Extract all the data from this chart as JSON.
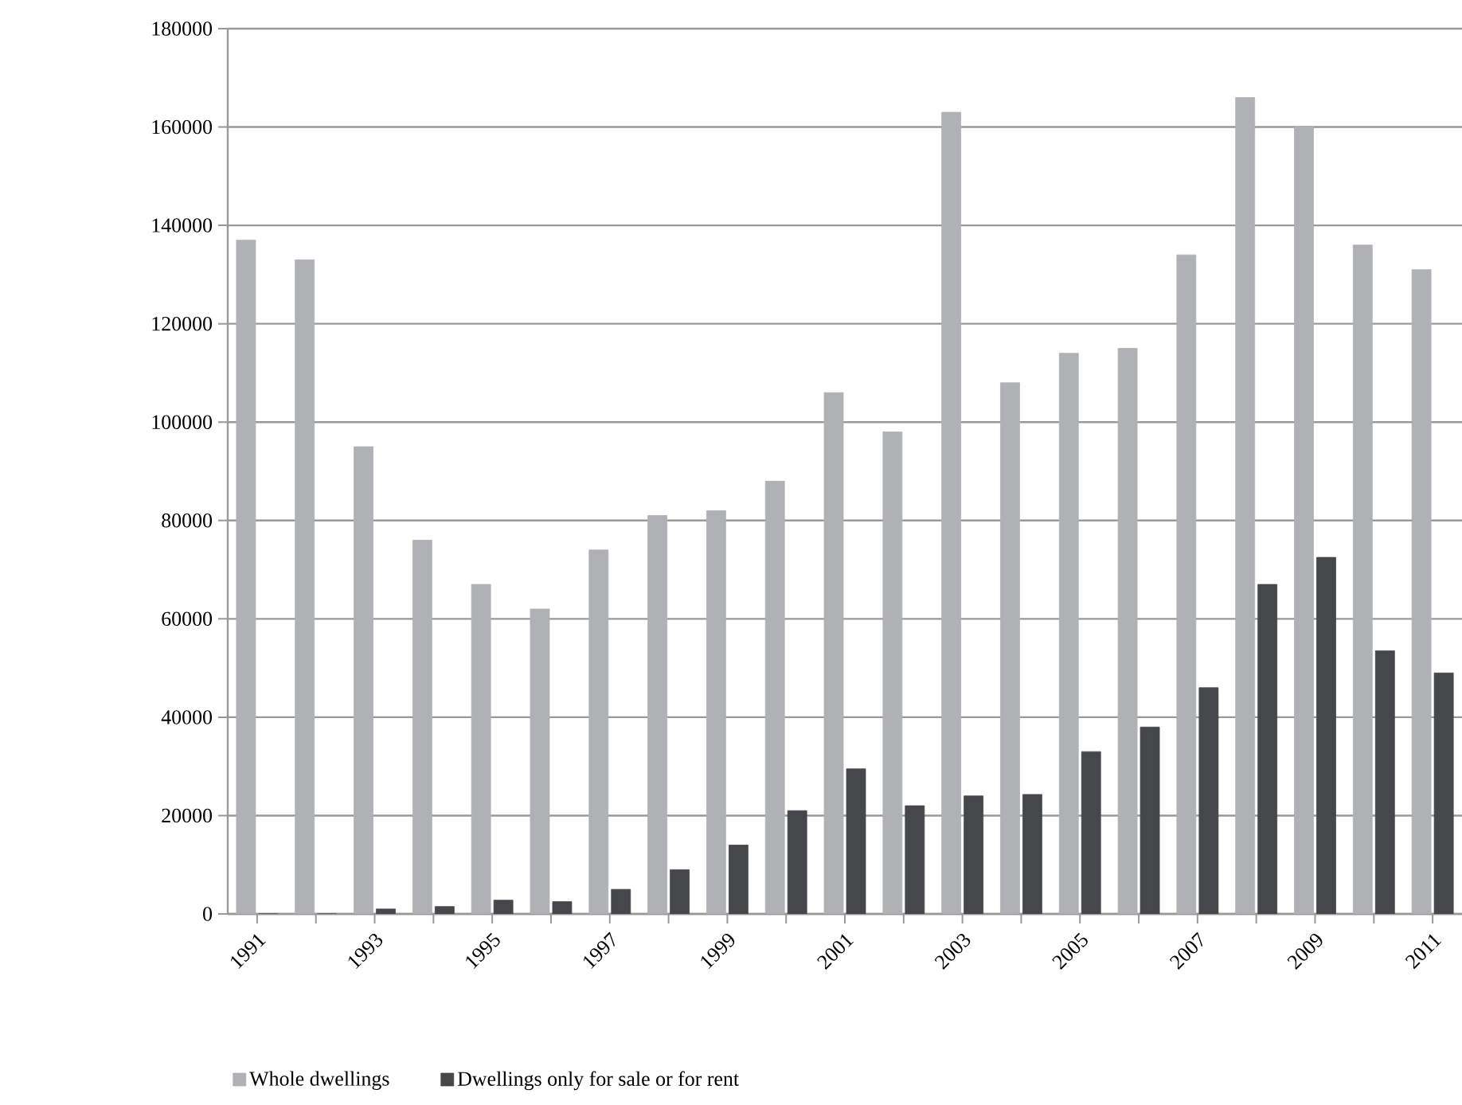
{
  "chart_data": {
    "type": "bar",
    "categories": [
      "1991",
      null,
      "1993",
      null,
      "1995",
      null,
      "1997",
      null,
      "1999",
      null,
      "2001",
      null,
      "2003",
      null,
      "2005",
      null,
      "2007",
      null,
      "2009",
      null,
      "2011"
    ],
    "series": [
      {
        "name": "Whole dwellings",
        "color": "#b0b1b5",
        "values": [
          137000,
          133000,
          95000,
          76000,
          67000,
          62000,
          74000,
          81000,
          82000,
          88000,
          106000,
          98000,
          163000,
          108000,
          114000,
          115000,
          134000,
          166000,
          160000,
          136000,
          131000
        ]
      },
      {
        "name": "Dwellings only for sale or for rent",
        "color": "#46474a",
        "values": [
          0,
          0,
          1000,
          1500,
          2800,
          2500,
          5000,
          9000,
          14000,
          21000,
          29500,
          22000,
          24000,
          24300,
          33000,
          38000,
          46000,
          67000,
          72500,
          53500,
          49000
        ]
      }
    ],
    "ylim": [
      0,
      180000
    ],
    "yticks": [
      0,
      20000,
      40000,
      60000,
      80000,
      100000,
      120000,
      140000,
      160000,
      180000
    ],
    "grid": "y",
    "legend": "bottom"
  }
}
